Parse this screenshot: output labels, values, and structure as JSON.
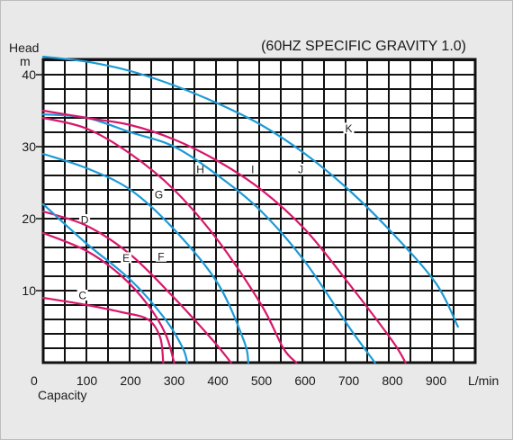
{
  "chart_data": {
    "type": "line",
    "title": "(60HZ SPECIFIC GRAVITY 1.0)",
    "ylabel_top": "Head",
    "ylabel_unit": "m",
    "xlabel": "Capacity",
    "xlabel_unit": "L/min",
    "origin_label": "0",
    "xlim": [
      0,
      1000
    ],
    "ylim": [
      0,
      42
    ],
    "x_ticks": [
      100,
      200,
      300,
      400,
      500,
      600,
      700,
      800,
      900
    ],
    "y_ticks": [
      10,
      20,
      30,
      40
    ],
    "grid": true,
    "colors": {
      "blue": "#1d9ad6",
      "magenta": "#d8176a",
      "grid": "#111111",
      "background": "#e9e9e9",
      "plot": "#ffffff"
    },
    "series": [
      {
        "name": "C",
        "color": "magenta",
        "label_at": [
          90,
          9
        ],
        "points": [
          [
            0,
            9
          ],
          [
            100,
            8
          ],
          [
            180,
            7
          ],
          [
            240,
            6
          ],
          [
            268,
            3.5
          ],
          [
            275,
            0
          ]
        ]
      },
      {
        "name": "D",
        "color": "magenta",
        "label_at": [
          95,
          19.5
        ],
        "points": [
          [
            0,
            18
          ],
          [
            100,
            15.5
          ],
          [
            180,
            12
          ],
          [
            240,
            8
          ],
          [
            280,
            4
          ],
          [
            300,
            0
          ]
        ]
      },
      {
        "name": "E",
        "color": "magenta",
        "label_at": [
          190,
          14.2
        ],
        "points": [
          [
            0,
            21
          ],
          [
            100,
            19
          ],
          [
            200,
            15
          ],
          [
            300,
            9
          ],
          [
            390,
            3
          ],
          [
            430,
            0
          ]
        ]
      },
      {
        "name": "F",
        "color": "blue",
        "label_at": [
          270,
          14.4
        ],
        "points": [
          [
            0,
            22
          ],
          [
            100,
            16.5
          ],
          [
            200,
            11.5
          ],
          [
            280,
            6
          ],
          [
            320,
            2
          ],
          [
            330,
            0
          ]
        ]
      },
      {
        "name": "G",
        "color": "blue",
        "label_at": [
          265,
          23
        ],
        "points": [
          [
            0,
            29
          ],
          [
            100,
            27
          ],
          [
            200,
            24
          ],
          [
            300,
            18.5
          ],
          [
            400,
            11
          ],
          [
            460,
            3
          ],
          [
            470,
            0
          ]
        ]
      },
      {
        "name": "H",
        "color": "magenta",
        "label_at": [
          360,
          26.5
        ],
        "points": [
          [
            0,
            34
          ],
          [
            100,
            32.5
          ],
          [
            200,
            29
          ],
          [
            300,
            24
          ],
          [
            400,
            17
          ],
          [
            500,
            8
          ],
          [
            550,
            2
          ],
          [
            580,
            0
          ]
        ]
      },
      {
        "name": "I",
        "color": "blue",
        "label_at": [
          480,
          26.5
        ],
        "points": [
          [
            0,
            34.5
          ],
          [
            100,
            34
          ],
          [
            200,
            32
          ],
          [
            300,
            30
          ],
          [
            400,
            26
          ],
          [
            500,
            21
          ],
          [
            600,
            14
          ],
          [
            700,
            5
          ],
          [
            760,
            0
          ]
        ]
      },
      {
        "name": "J",
        "color": "magenta",
        "label_at": [
          590,
          26.5
        ],
        "points": [
          [
            0,
            35
          ],
          [
            100,
            34
          ],
          [
            200,
            33
          ],
          [
            300,
            31
          ],
          [
            400,
            28
          ],
          [
            500,
            24
          ],
          [
            600,
            18.5
          ],
          [
            700,
            11
          ],
          [
            800,
            3
          ],
          [
            830,
            0
          ]
        ]
      },
      {
        "name": "K",
        "color": "blue",
        "label_at": [
          700,
          32.2
        ],
        "points": [
          [
            0,
            42.5
          ],
          [
            100,
            41.8
          ],
          [
            200,
            40.5
          ],
          [
            300,
            38.5
          ],
          [
            400,
            36
          ],
          [
            500,
            33
          ],
          [
            600,
            29
          ],
          [
            700,
            24
          ],
          [
            800,
            18
          ],
          [
            900,
            11
          ],
          [
            950,
            5
          ]
        ]
      }
    ]
  }
}
